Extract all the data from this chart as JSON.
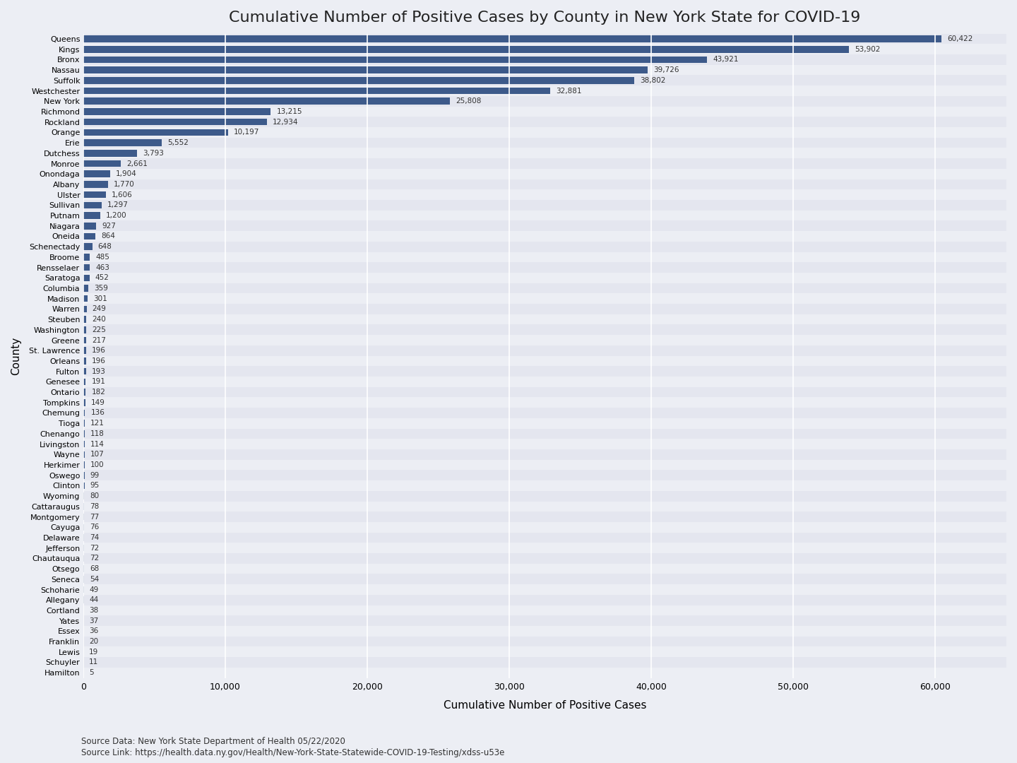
{
  "title": "Cumulative Number of Positive Cases by County in New York State for COVID-19",
  "xlabel": "Cumulative Number of Positive Cases",
  "ylabel": "County",
  "source1": "Source Data: New York State Department of Health 05/22/2020",
  "source2": "Source Link: https://health.data.ny.gov/Health/New-York-State-Statewide-COVID-19-Testing/xdss-u53e",
  "bar_color": "#3d5a8a",
  "fig_bg_color": "#eceef4",
  "plot_bg_color_even": "#e4e6ef",
  "plot_bg_color_odd": "#eceef4",
  "counties": [
    "Queens",
    "Kings",
    "Bronx",
    "Nassau",
    "Suffolk",
    "Westchester",
    "New York",
    "Richmond",
    "Rockland",
    "Orange",
    "Erie",
    "Dutchess",
    "Monroe",
    "Onondaga",
    "Albany",
    "Ulster",
    "Sullivan",
    "Putnam",
    "Niagara",
    "Oneida",
    "Schenectady",
    "Broome",
    "Rensselaer",
    "Saratoga",
    "Columbia",
    "Madison",
    "Warren",
    "Steuben",
    "Washington",
    "Greene",
    "St. Lawrence",
    "Orleans",
    "Fulton",
    "Genesee",
    "Ontario",
    "Tompkins",
    "Chemung",
    "Tioga",
    "Chenango",
    "Livingston",
    "Wayne",
    "Herkimer",
    "Oswego",
    "Clinton",
    "Wyoming",
    "Cattaraugus",
    "Montgomery",
    "Cayuga",
    "Delaware",
    "Jefferson",
    "Chautauqua",
    "Otsego",
    "Seneca",
    "Schoharie",
    "Allegany",
    "Cortland",
    "Yates",
    "Essex",
    "Franklin",
    "Lewis",
    "Schuyler",
    "Hamilton"
  ],
  "values": [
    60422,
    53902,
    43921,
    39726,
    38802,
    32881,
    25808,
    13215,
    12934,
    10197,
    5552,
    3793,
    2661,
    1904,
    1770,
    1606,
    1297,
    1200,
    927,
    864,
    648,
    485,
    463,
    452,
    359,
    301,
    249,
    240,
    225,
    217,
    196,
    196,
    193,
    191,
    182,
    149,
    136,
    121,
    118,
    114,
    107,
    100,
    99,
    95,
    80,
    78,
    77,
    76,
    74,
    72,
    72,
    68,
    54,
    49,
    44,
    38,
    37,
    36,
    20,
    19,
    11,
    5
  ],
  "value_labels": {
    "Queens": "60,422",
    "Kings": "53,902",
    "Bronx": "43,921",
    "Nassau": "39,726",
    "Suffolk": "38,802",
    "Westchester": "32,881",
    "New York": "25,808",
    "Richmond": "13,215",
    "Rockland": "12,934",
    "Orange": "10,197",
    "Erie": "5,552",
    "Dutchess": "3,793",
    "Monroe": "2,661",
    "Onondaga": "1,904",
    "Albany": "1,770",
    "Ulster": "1,606",
    "Sullivan": "1,297",
    "Putnam": "1,200",
    "Niagara": "927",
    "Oneida": "864",
    "Schenectady": "648",
    "Broome": "485",
    "Rensselaer": "463",
    "Saratoga": "452",
    "Columbia": "359",
    "Madison": "301",
    "Warren": "249",
    "Steuben": "240",
    "Washington": "225",
    "Greene": "217",
    "St. Lawrence": "196",
    "Orleans": "196",
    "Fulton": "193",
    "Genesee": "191",
    "Ontario": "182",
    "Tompkins": "149",
    "Chemung": "136",
    "Tioga": "121",
    "Chenango": "118",
    "Livingston": "114",
    "Wayne": "107",
    "Herkimer": "100",
    "Oswego": "99",
    "Clinton": "95",
    "Wyoming": "80",
    "Cattaraugus": "78",
    "Montgomery": "77",
    "Cayuga": "76",
    "Delaware": "74",
    "Jefferson": "72",
    "Chautauqua": "72",
    "Otsego": "68",
    "Seneca": "54",
    "Schoharie": "49",
    "Allegany": "44",
    "Cortland": "38",
    "Yates": "37",
    "Essex": "36",
    "Franklin": "20",
    "Lewis": "19",
    "Schuyler": "11",
    "Hamilton": "5"
  },
  "xlim": [
    0,
    65000
  ],
  "xticks": [
    0,
    10000,
    20000,
    30000,
    40000,
    50000,
    60000
  ],
  "title_fontsize": 16,
  "axis_label_fontsize": 11,
  "tick_fontsize": 9,
  "bar_label_fontsize": 7.5
}
